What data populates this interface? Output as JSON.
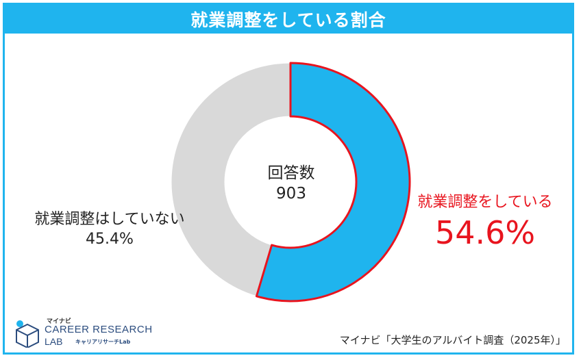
{
  "title": "就業調整をしている割合",
  "center": {
    "label": "回答数",
    "count": "903"
  },
  "logo": {
    "small": "マイナビ",
    "main": "CAREER RESEARCH",
    "lab": "LAB",
    "sub": "キャリアリサーチLab"
  },
  "source": "マイナビ「大学生のアルバイト調査（2025年）」",
  "colors": {
    "accent": "#1fb4ee",
    "highlight": "#e8141e",
    "other": "#d9d9d9"
  },
  "chart_data": {
    "type": "pie",
    "donut": true,
    "slices": [
      {
        "name": "就業調整をしている",
        "value_label": "54.6%",
        "value": 54.6,
        "color": "#1fb4ee",
        "highlighted": true
      },
      {
        "name": "就業調整はしていない",
        "value_label": "45.4%",
        "value": 45.4,
        "color": "#d9d9d9",
        "highlighted": false
      }
    ]
  }
}
